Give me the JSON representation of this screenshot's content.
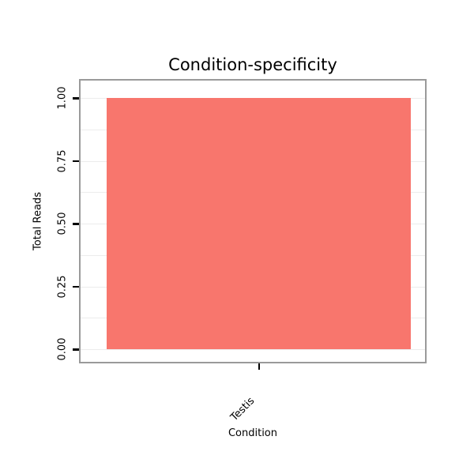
{
  "chart_data": {
    "type": "bar",
    "title": "Condition-specificity",
    "categories": [
      "Testis"
    ],
    "values": [
      1.0
    ],
    "xlabel": "Condition",
    "ylabel": "Total Reads",
    "ylim": [
      0,
      1
    ],
    "ytick_labels": [
      "0.00",
      "0.25",
      "0.50",
      "0.75",
      "1.00"
    ],
    "ytick_values": [
      0,
      0.25,
      0.5,
      0.75,
      1
    ],
    "minor_grid_step": 0.125,
    "grid": true,
    "legend_position": "none",
    "bar_color": "#F8766D"
  },
  "colors": {
    "bar": "#F8766D",
    "plot_border": "#9a9a9a",
    "gridline": "#ececec",
    "tick": "#000000",
    "background": "#ffffff"
  }
}
